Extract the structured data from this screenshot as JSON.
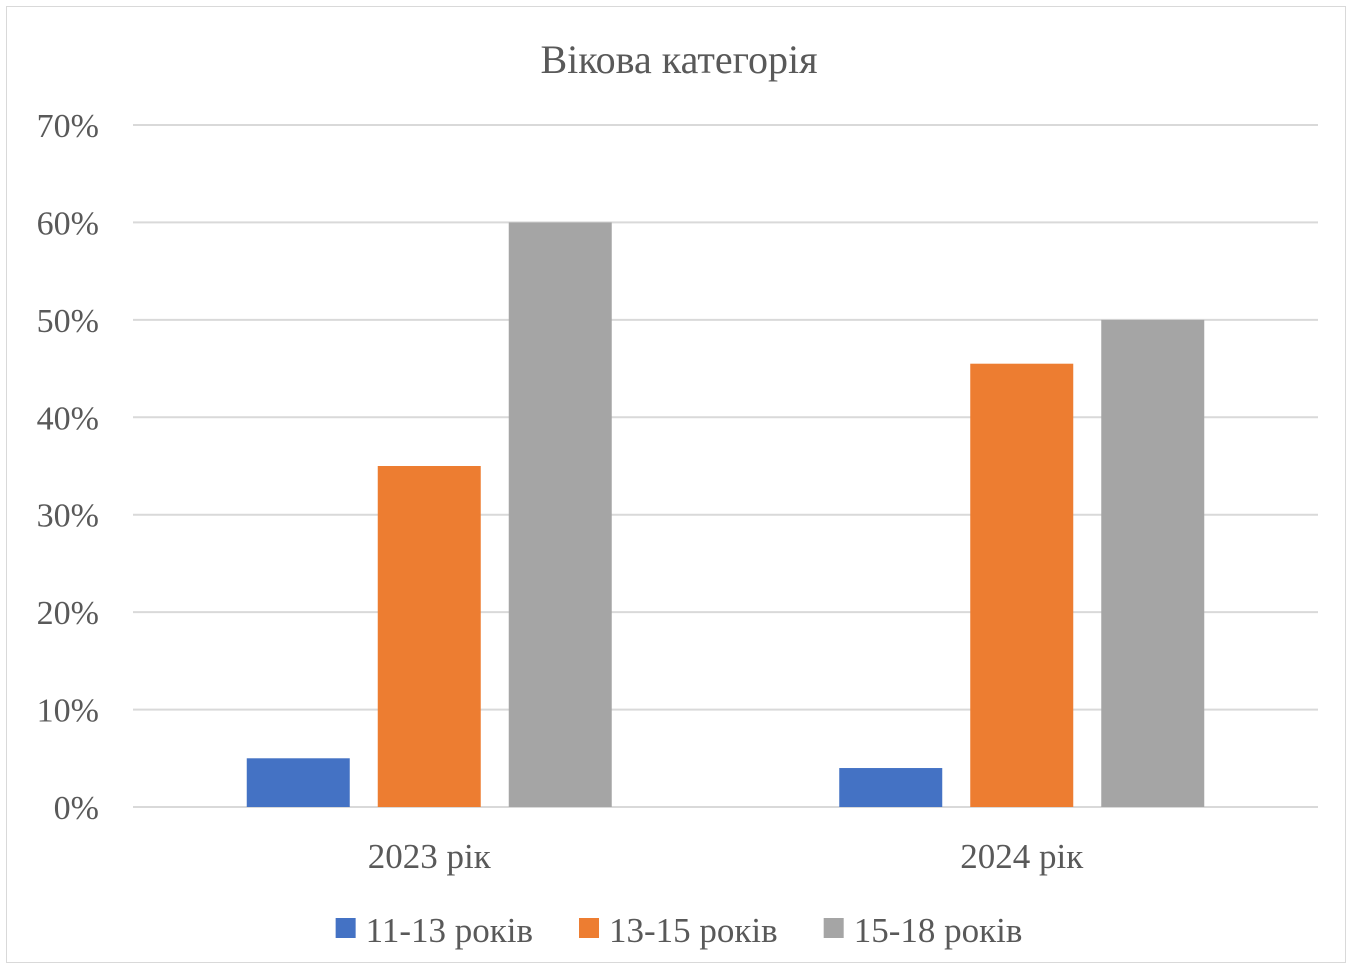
{
  "chart_data": {
    "type": "bar",
    "title": "Вікова категорія",
    "xlabel": "",
    "ylabel": "",
    "categories": [
      "2023 рік",
      "2024 рік"
    ],
    "series": [
      {
        "name": "11-13 років",
        "color": "#4472c4",
        "values": [
          5,
          4
        ]
      },
      {
        "name": "13-15 років",
        "color": "#ed7d31",
        "values": [
          35,
          45.5
        ]
      },
      {
        "name": "15-18 років",
        "color": "#a5a5a5",
        "values": [
          60,
          50
        ]
      }
    ],
    "ylim": [
      0,
      70
    ],
    "y_ticks": [
      0,
      10,
      20,
      30,
      40,
      50,
      60,
      70
    ],
    "y_tick_format": "percent",
    "grid": true,
    "legend_position": "bottom"
  }
}
